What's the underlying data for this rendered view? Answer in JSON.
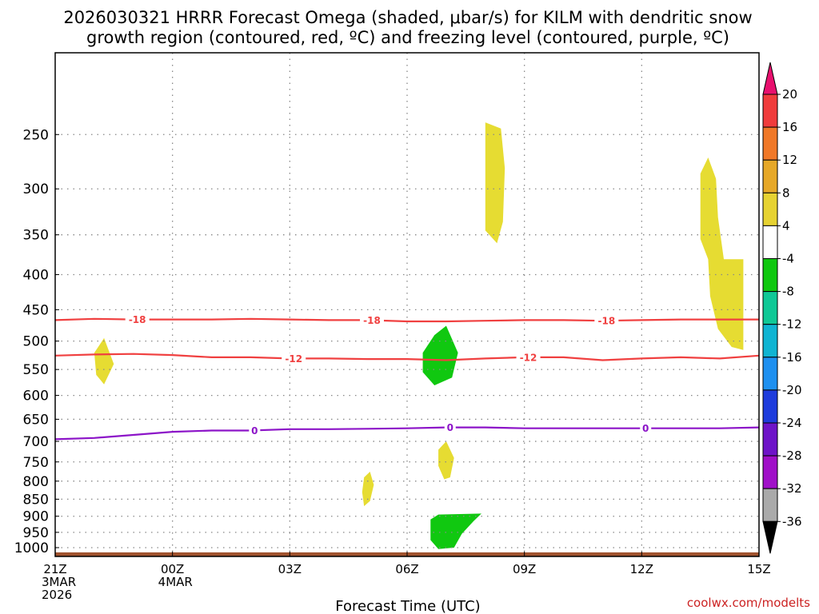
{
  "chart_data": {
    "type": "area",
    "title_lines": [
      "2026030321 HRRR Forecast Omega (shaded, μbar/s) for KILM with dendritic snow",
      "growth region (contoured, red, ºC) and freezing level (contoured, purple, ºC)"
    ],
    "xlabel": "Forecast Time (UTC)",
    "credit": "coolwx.com/modelts",
    "x_range_hours": [
      0,
      18
    ],
    "x_ticks": [
      {
        "h": 0,
        "lines": [
          "21Z",
          "3MAR",
          "2026"
        ]
      },
      {
        "h": 3,
        "lines": [
          "00Z",
          "4MAR"
        ]
      },
      {
        "h": 6,
        "lines": [
          "03Z"
        ]
      },
      {
        "h": 9,
        "lines": [
          "06Z"
        ]
      },
      {
        "h": 12,
        "lines": [
          "09Z"
        ]
      },
      {
        "h": 15,
        "lines": [
          "12Z"
        ]
      },
      {
        "h": 18,
        "lines": [
          "15Z"
        ]
      }
    ],
    "y_range_hpa": [
      1030,
      190
    ],
    "y_ticks": [
      250,
      300,
      350,
      400,
      450,
      500,
      550,
      600,
      650,
      700,
      750,
      800,
      850,
      900,
      950,
      1000
    ],
    "colorbar": {
      "tick_labels": [
        "20",
        "16",
        "12",
        "8",
        "4",
        "-4",
        "-8",
        "-12",
        "-16",
        "-20",
        "-24",
        "-28",
        "-32",
        "-36"
      ],
      "colors": [
        "#e8106e",
        "#f03c3c",
        "#f07828",
        "#e6a828",
        "#e6d232",
        "#ffffff",
        "#10c810",
        "#10c896",
        "#10b4d2",
        "#1e90f0",
        "#1e3cdc",
        "#6e14c8",
        "#a010c8",
        "#aaaaaa",
        "#000000"
      ]
    },
    "omega_regions": [
      {
        "value": 6,
        "color": "#e6dc32",
        "points": [
          [
            1.0,
            520
          ],
          [
            1.25,
            495
          ],
          [
            1.5,
            540
          ],
          [
            1.25,
            578
          ],
          [
            1.05,
            560
          ]
        ]
      },
      {
        "value": 6,
        "color": "#e6dc32",
        "points": [
          [
            11.0,
            240
          ],
          [
            11.4,
            245
          ],
          [
            11.5,
            280
          ],
          [
            11.45,
            335
          ],
          [
            11.3,
            360
          ],
          [
            11.0,
            345
          ]
        ]
      },
      {
        "value": 6,
        "color": "#e6dc32",
        "points": [
          [
            16.5,
            285
          ],
          [
            16.7,
            270
          ],
          [
            16.9,
            290
          ],
          [
            16.95,
            330
          ],
          [
            17.1,
            380
          ],
          [
            17.6,
            380
          ],
          [
            17.6,
            515
          ],
          [
            17.3,
            510
          ],
          [
            16.95,
            480
          ],
          [
            16.75,
            430
          ],
          [
            16.7,
            380
          ],
          [
            16.5,
            355
          ]
        ]
      },
      {
        "value": 6,
        "color": "#e6dc32",
        "points": [
          [
            7.9,
            790
          ],
          [
            8.05,
            775
          ],
          [
            8.15,
            810
          ],
          [
            8.05,
            855
          ],
          [
            7.9,
            870
          ],
          [
            7.85,
            830
          ]
        ]
      },
      {
        "value": 6,
        "color": "#e6dc32",
        "points": [
          [
            9.8,
            720
          ],
          [
            10.0,
            700
          ],
          [
            10.2,
            740
          ],
          [
            10.1,
            790
          ],
          [
            9.95,
            795
          ],
          [
            9.8,
            760
          ]
        ]
      },
      {
        "value": -6,
        "color": "#10c810",
        "points": [
          [
            9.4,
            520
          ],
          [
            9.7,
            490
          ],
          [
            10.0,
            475
          ],
          [
            10.3,
            520
          ],
          [
            10.15,
            565
          ],
          [
            9.7,
            580
          ],
          [
            9.4,
            555
          ]
        ]
      },
      {
        "value": -6,
        "color": "#10c810",
        "points": [
          [
            9.6,
            910
          ],
          [
            9.8,
            895
          ],
          [
            10.9,
            892
          ],
          [
            10.7,
            915
          ],
          [
            10.4,
            955
          ],
          [
            10.2,
            1000
          ],
          [
            9.8,
            1005
          ],
          [
            9.6,
            975
          ]
        ]
      }
    ],
    "contours": [
      {
        "label": "-18",
        "color": "#f04040",
        "x": [
          0,
          1,
          2,
          3,
          4,
          5,
          6,
          7,
          8,
          9,
          10,
          11,
          12,
          13,
          14,
          15,
          16,
          17,
          18
        ],
        "p": [
          466,
          464,
          465,
          465,
          465,
          464,
          465,
          466,
          466,
          468,
          468,
          467,
          466,
          466,
          467,
          466,
          465,
          465,
          465
        ],
        "label_hours": [
          2.1,
          8.1,
          14.1
        ]
      },
      {
        "label": "-12",
        "color": "#f04040",
        "x": [
          0,
          1,
          2,
          3,
          4,
          5,
          6,
          7,
          8,
          9,
          10,
          11,
          12,
          13,
          14,
          15,
          16,
          17,
          18
        ],
        "p": [
          525,
          523,
          522,
          524,
          528,
          528,
          530,
          530,
          531,
          531,
          533,
          530,
          528,
          528,
          533,
          530,
          528,
          530,
          525
        ],
        "label_hours": [
          6.1,
          12.1
        ]
      },
      {
        "label": "0",
        "color": "#8c14c8",
        "x": [
          0,
          1,
          2,
          3,
          4,
          5,
          6,
          7,
          8,
          9,
          10,
          11,
          12,
          13,
          14,
          15,
          16,
          17,
          18
        ],
        "p": [
          695,
          692,
          685,
          678,
          675,
          675,
          672,
          672,
          671,
          670,
          668,
          668,
          670,
          670,
          670,
          670,
          670,
          670,
          668
        ],
        "label_hours": [
          5.1,
          10.1,
          15.1
        ]
      }
    ],
    "ground_band_hpa": [
      1016,
      1030
    ],
    "ground_color": "#a0522d"
  }
}
